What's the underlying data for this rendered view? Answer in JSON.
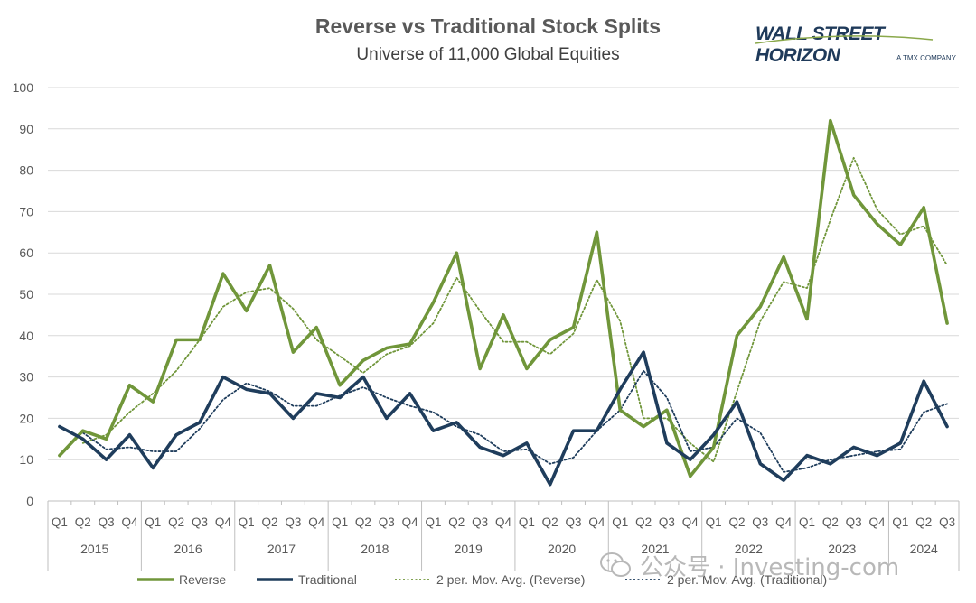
{
  "header": {
    "title": "Reverse vs Traditional Stock Splits",
    "subtitle": "Universe of 11,000 Global Equities"
  },
  "logo": {
    "name": "WALL STREET HORIZON",
    "tagline": "A TMX COMPANY"
  },
  "watermark": {
    "text": "公众号 · Investing-com"
  },
  "colors": {
    "reverse": "#70963a",
    "traditional": "#1f3d5c",
    "grid": "#d9d9d9",
    "axis_text": "#595959"
  },
  "chart_data": {
    "type": "line",
    "title": "Reverse vs Traditional Stock Splits",
    "subtitle": "Universe of 11,000 Global Equities",
    "ylim": [
      0,
      100
    ],
    "yticks": [
      0,
      10,
      20,
      30,
      40,
      50,
      60,
      70,
      80,
      90,
      100
    ],
    "grid": true,
    "legend_position": "bottom",
    "quarters": [
      "Q1",
      "Q2",
      "Q3",
      "Q4",
      "Q1",
      "Q2",
      "Q3",
      "Q4",
      "Q1",
      "Q2",
      "Q3",
      "Q4",
      "Q1",
      "Q2",
      "Q3",
      "Q4",
      "Q1",
      "Q2",
      "Q3",
      "Q4",
      "Q1",
      "Q2",
      "Q3",
      "Q4",
      "Q1",
      "Q2",
      "Q3",
      "Q4",
      "Q1",
      "Q2",
      "Q3",
      "Q4",
      "Q1",
      "Q2",
      "Q3",
      "Q4",
      "Q1",
      "Q2",
      "Q3"
    ],
    "years": [
      "2015",
      "2016",
      "2017",
      "2018",
      "2019",
      "2020",
      "2021",
      "2022",
      "2023",
      "2024"
    ],
    "series": [
      {
        "name": "Reverse",
        "style": "solid",
        "values": [
          11,
          17,
          15,
          28,
          24,
          39,
          39,
          55,
          46,
          57,
          36,
          42,
          28,
          34,
          37,
          38,
          48,
          60,
          32,
          45,
          32,
          39,
          42,
          65,
          22,
          18,
          22,
          6,
          13,
          40,
          47,
          59,
          44,
          92,
          74,
          67,
          62,
          71,
          43
        ]
      },
      {
        "name": "Traditional",
        "style": "solid",
        "values": [
          18,
          15,
          10,
          16,
          8,
          16,
          19,
          30,
          27,
          26,
          20,
          26,
          25,
          30,
          20,
          26,
          17,
          19,
          13,
          11,
          14,
          4,
          17,
          17,
          27,
          36,
          14,
          10,
          16,
          24,
          9,
          5,
          11,
          9,
          13,
          11,
          14,
          29,
          18
        ]
      },
      {
        "name": "2 per. Mov. Avg. (Reverse)",
        "style": "dotted",
        "values": [
          null,
          14,
          16,
          21.5,
          26,
          31.5,
          39,
          47,
          50.5,
          51.5,
          46.5,
          39,
          35,
          31,
          35.5,
          37.5,
          43,
          54,
          46,
          38.5,
          38.5,
          35.5,
          40.5,
          53.5,
          43.5,
          20,
          20,
          14,
          9.5,
          26.5,
          43.5,
          53,
          51.5,
          68,
          83,
          70.5,
          64.5,
          66.5,
          57
        ]
      },
      {
        "name": "2 per. Mov. Avg. (Traditional)",
        "style": "dotted",
        "values": [
          null,
          16.5,
          12.5,
          13,
          12,
          12,
          17.5,
          24.5,
          28.5,
          26.5,
          23,
          23,
          25.5,
          27.5,
          25,
          23,
          21.5,
          18,
          16,
          12,
          12.5,
          9,
          10.5,
          17,
          22,
          31.5,
          25,
          12,
          13,
          20,
          16.5,
          7,
          8,
          10,
          11,
          12,
          12.5,
          21.5,
          23.5
        ]
      }
    ]
  }
}
